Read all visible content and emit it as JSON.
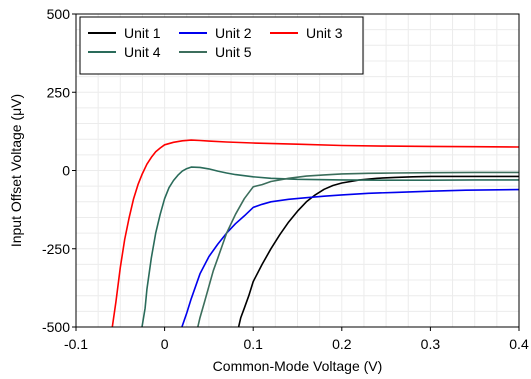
{
  "chart_data": {
    "type": "line",
    "title": "",
    "xlabel": "Common-Mode Voltage (V)",
    "ylabel": "Input Offset Voltage (μV)",
    "xlim": [
      -0.1,
      0.4
    ],
    "ylim": [
      -500,
      500
    ],
    "xticks": [
      -0.1,
      0,
      0.1,
      0.2,
      0.3,
      0.4
    ],
    "xtick_labels": [
      "-0.1",
      "0",
      "0.1",
      "0.2",
      "0.3",
      "0.4"
    ],
    "yticks": [
      -500,
      -250,
      0,
      250,
      500
    ],
    "ytick_labels": [
      "-500",
      "-250",
      "0",
      "250",
      "500"
    ],
    "grid": true,
    "legend_position": "top-left",
    "series": [
      {
        "name": "Unit 1",
        "color": "#000000",
        "x": [
          0.0835,
          0.086,
          0.09,
          0.095,
          0.1,
          0.11,
          0.12,
          0.13,
          0.14,
          0.15,
          0.16,
          0.17,
          0.18,
          0.19,
          0.2,
          0.22,
          0.24,
          0.26,
          0.28,
          0.3,
          0.33,
          0.36,
          0.4
        ],
        "y": [
          -500,
          -470,
          -440,
          -400,
          -355,
          -300,
          -250,
          -205,
          -165,
          -130,
          -100,
          -78,
          -60,
          -48,
          -40,
          -30,
          -25,
          -22,
          -20,
          -19,
          -19,
          -19,
          -19
        ]
      },
      {
        "name": "Unit 2",
        "color": "#0000ee",
        "x": [
          0.0195,
          0.022,
          0.025,
          0.03,
          0.035,
          0.04,
          0.05,
          0.06,
          0.07,
          0.08,
          0.09,
          0.1,
          0.11,
          0.12,
          0.14,
          0.16,
          0.18,
          0.2,
          0.23,
          0.26,
          0.3,
          0.34,
          0.4
        ],
        "y": [
          -500,
          -480,
          -455,
          -410,
          -370,
          -330,
          -275,
          -235,
          -200,
          -170,
          -145,
          -118,
          -108,
          -100,
          -92,
          -87,
          -82,
          -78,
          -73,
          -70,
          -66,
          -63,
          -61
        ]
      },
      {
        "name": "Unit 3",
        "color": "#ff0000",
        "x": [
          -0.059,
          -0.055,
          -0.05,
          -0.045,
          -0.04,
          -0.035,
          -0.03,
          -0.025,
          -0.02,
          -0.015,
          -0.01,
          -0.005,
          0.0,
          0.01,
          0.02,
          0.03,
          0.04,
          0.05,
          0.07,
          0.1,
          0.15,
          0.2,
          0.25,
          0.3,
          0.35,
          0.4
        ],
        "y": [
          -500,
          -420,
          -310,
          -220,
          -150,
          -90,
          -45,
          -10,
          20,
          42,
          60,
          72,
          82,
          90,
          95,
          97,
          96,
          94,
          91,
          88,
          84,
          80,
          78,
          77,
          76,
          75
        ]
      },
      {
        "name": "Unit 4",
        "color": "#2a6b5a",
        "x": [
          -0.0255,
          -0.022,
          -0.02,
          -0.015,
          -0.01,
          -0.005,
          0.0,
          0.005,
          0.01,
          0.015,
          0.02,
          0.025,
          0.03,
          0.04,
          0.05,
          0.06,
          0.07,
          0.08,
          0.1,
          0.12,
          0.15,
          0.2,
          0.25,
          0.3,
          0.35,
          0.4
        ],
        "y": [
          -500,
          -440,
          -380,
          -280,
          -200,
          -140,
          -90,
          -55,
          -32,
          -15,
          -2,
          6,
          11,
          10,
          5,
          -2,
          -8,
          -13,
          -20,
          -25,
          -28,
          -30,
          -31,
          -31,
          -30,
          -30
        ]
      },
      {
        "name": "Unit 5",
        "color": "#3c6e5c",
        "x": [
          0.0375,
          0.04,
          0.045,
          0.05,
          0.055,
          0.06,
          0.065,
          0.07,
          0.08,
          0.09,
          0.1,
          0.11,
          0.12,
          0.14,
          0.16,
          0.18,
          0.2,
          0.23,
          0.26,
          0.3,
          0.35,
          0.4
        ],
        "y": [
          -500,
          -470,
          -420,
          -370,
          -320,
          -280,
          -240,
          -200,
          -140,
          -90,
          -52,
          -45,
          -35,
          -25,
          -18,
          -14,
          -11,
          -9,
          -8,
          -7,
          -6,
          -6
        ]
      }
    ]
  }
}
